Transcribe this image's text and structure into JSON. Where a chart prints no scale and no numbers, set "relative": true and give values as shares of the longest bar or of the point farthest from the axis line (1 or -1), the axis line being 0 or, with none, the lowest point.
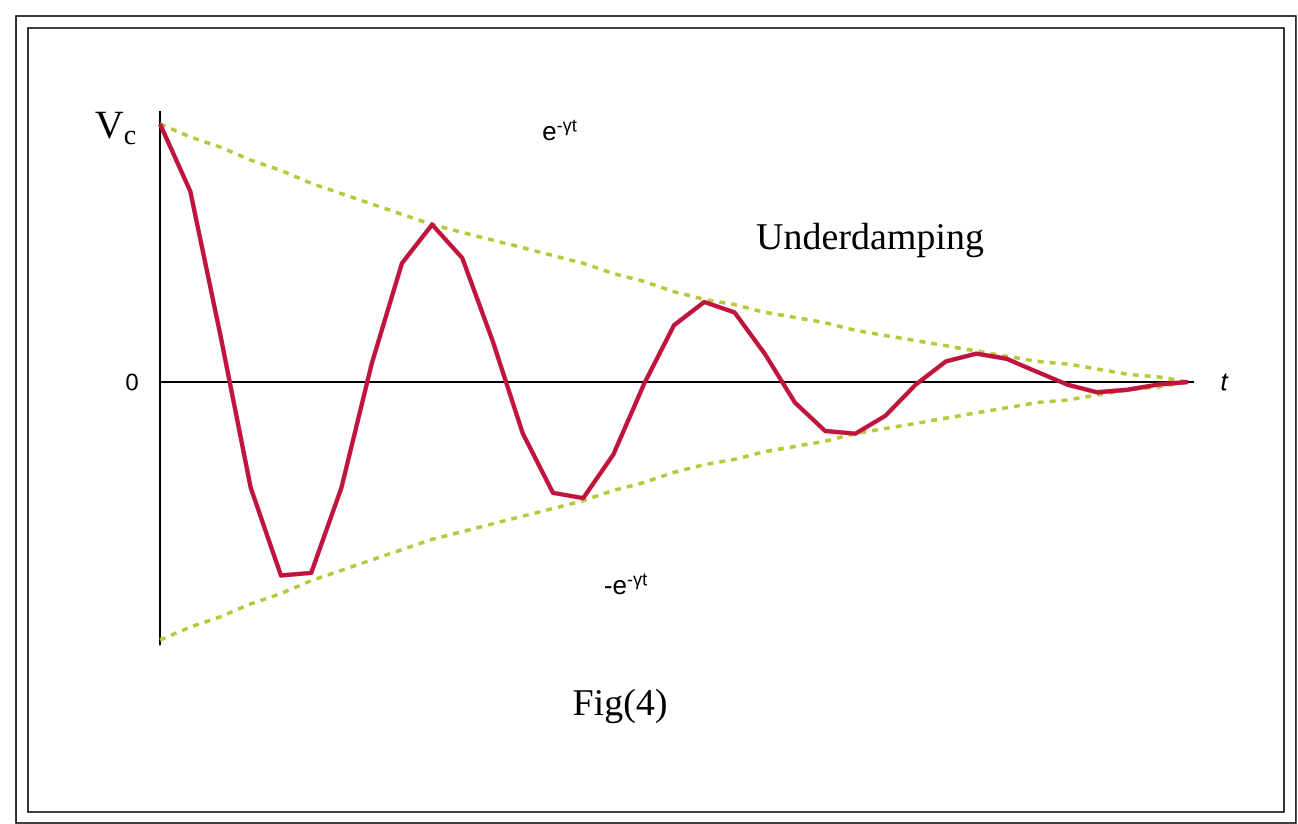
{
  "chart_data": {
    "type": "line",
    "relative": true,
    "ylabel": "V$_{c}$",
    "xlabel": "t",
    "annotations": [
      "e$^{-γt}$",
      "Underdamping",
      "0",
      "-e$^{-γt}$",
      "Fig(4)"
    ],
    "categories": [
      null,
      null,
      null,
      null,
      null,
      null,
      null,
      null,
      null,
      null,
      null,
      null,
      null,
      null,
      null,
      null,
      null,
      null,
      null,
      null,
      null,
      null,
      null,
      null,
      null,
      null,
      null,
      null,
      null,
      null,
      null,
      null,
      null,
      null,
      null
    ],
    "series": [
      {
        "color": "#b8c838",
        "line_style": "dashed",
        "values": [
          1.0,
          0.95,
          0.91,
          0.86,
          0.82,
          0.77,
          0.73,
          0.69,
          0.65,
          0.61,
          0.58,
          0.55,
          0.52,
          0.49,
          0.46,
          0.42,
          0.39,
          0.35,
          0.32,
          0.3,
          0.27,
          0.25,
          0.23,
          0.2,
          0.18,
          0.16,
          0.14,
          0.12,
          0.1,
          0.08,
          0.07,
          0.05,
          0.03,
          0.02,
          0.0
        ]
      },
      {
        "color": "#b8c838",
        "line_style": "dashed",
        "values": [
          -1.0,
          -0.95,
          -0.91,
          -0.86,
          -0.82,
          -0.77,
          -0.73,
          -0.69,
          -0.65,
          -0.61,
          -0.58,
          -0.55,
          -0.52,
          -0.49,
          -0.46,
          -0.42,
          -0.39,
          -0.35,
          -0.32,
          -0.3,
          -0.27,
          -0.25,
          -0.23,
          -0.2,
          -0.18,
          -0.16,
          -0.14,
          -0.12,
          -0.1,
          -0.08,
          -0.07,
          -0.05,
          -0.03,
          -0.02,
          0.0
        ]
      },
      {
        "color": "#c0143c",
        "line_style": "solid",
        "values": [
          1.0,
          0.74,
          0.18,
          -0.41,
          -0.75,
          -0.74,
          -0.41,
          0.07,
          0.46,
          0.61,
          0.48,
          0.16,
          -0.2,
          -0.43,
          -0.45,
          -0.28,
          -0.01,
          0.22,
          0.31,
          0.27,
          0.11,
          -0.08,
          -0.19,
          -0.2,
          -0.13,
          -0.01,
          0.08,
          0.11,
          0.09,
          0.04,
          -0.01,
          -0.04,
          -0.03,
          -0.01,
          0.0
        ]
      }
    ],
    "marker": "none"
  }
}
